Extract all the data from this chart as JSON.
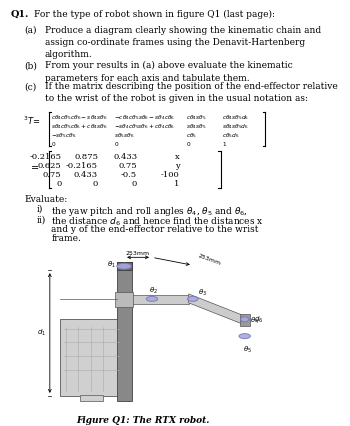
{
  "title_label": "Q1.",
  "title_text": "For the type of robot shown in figure Q1 (last page):",
  "part_a_label": "(a)",
  "part_a_text": "Produce a diagram clearly showing the kinematic chain and\nassign co-ordinate frames using the Denavit-Hartenberg\nalgorithm.",
  "part_b_label": "(b)",
  "part_b_text": "From your results in (a) above evaluate the kinematic\nparameters for each axis and tabulate them.",
  "part_c_label": "(c)",
  "part_c_text": "If the matrix describing the position of the end-effector relative\nto the wrist of the robot is given in the usual notation as:",
  "sym_rows": [
    [
      "c\\theta_4 c\\theta_5 c\\theta_6 - s\\theta_4 s\\theta_6",
      "-c\\theta_4 c\\theta_5 s\\theta_6 - s\\theta_4 c\\theta_6",
      "c\\theta_4 s\\theta_5",
      "c\\theta_4 s\\theta_5 d_6"
    ],
    [
      "s\\theta_4 c\\theta_5 c\\theta_6 + c\\theta_4 s\\theta_6",
      "-s\\theta_4 c\\theta_5 s\\theta_6 + c\\theta_4 c\\theta_6",
      "s\\theta_4 s\\theta_5",
      "s\\theta_4 s\\theta_5 d_6"
    ],
    [
      "-s\\theta_5 c\\theta_6",
      "s\\theta_5 s\\theta_6",
      "c\\theta_5",
      "c\\theta_5 d_6"
    ],
    [
      "0",
      "0",
      "0",
      "1"
    ]
  ],
  "num_rows": [
    [
      "-0.2165",
      "0.875",
      "0.433",
      "x"
    ],
    [
      "0.625",
      "-0.2165",
      "0.75",
      "y"
    ],
    [
      "0.75",
      "0.433",
      "-0.5",
      "-100"
    ],
    [
      "0",
      "0",
      "0",
      "1"
    ]
  ],
  "evaluate_label": "Evaluate:",
  "eval_i": "the yaw pitch and roll angles $\\theta_4$, $\\theta_5$ and $\\theta_6$,",
  "eval_ii_1": "the distance $d_6$ and hence find the distances x",
  "eval_ii_2": "and y of the end-effector relative to the wrist",
  "eval_ii_3": "frame.",
  "figure_caption": "Figure Q1: The RTX robot.",
  "bg_color": "#ffffff",
  "text_color": "#000000",
  "joint_edge": "#7777bb",
  "joint_face": "#aaaadd",
  "col_color": "#888888",
  "arm_color": "#cccccc",
  "cab_color": "#d0d0d0"
}
